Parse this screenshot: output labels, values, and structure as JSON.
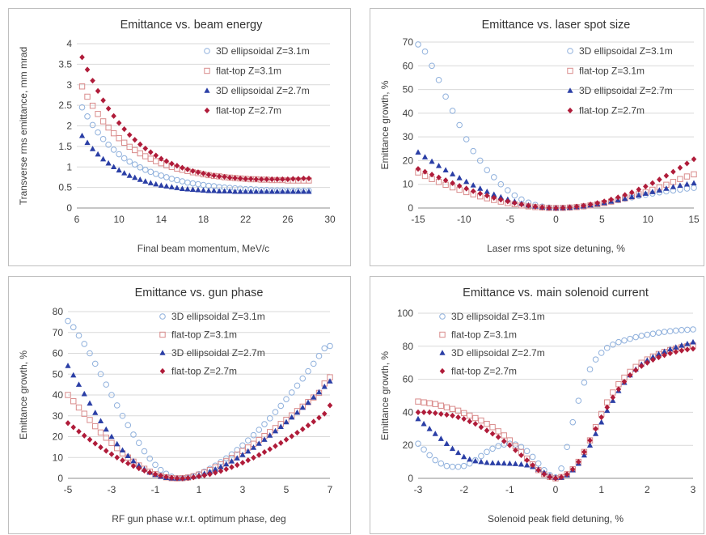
{
  "colors": {
    "ellipsoidal_31": "#8fb0dc",
    "flattop_31": "#d98b8b",
    "ellipsoidal_27": "#2b3fa6",
    "flattop_27": "#b01c3a",
    "grid": "#d9d9d9",
    "axis": "#8c8c8c"
  },
  "legend_labels": [
    "3D ellipsoidal Z=3.1m",
    "flat-top Z=3.1m",
    "3D ellipsoidal Z=2.7m",
    "flat-top Z=2.7m"
  ],
  "chart_data": [
    {
      "type": "scatter",
      "title": "Emittance vs. beam energy",
      "xlabel": "Final beam momentum, MeV/c",
      "ylabel": "Transverse rms emittance, mm mrad",
      "xlim": [
        6,
        30
      ],
      "ylim": [
        0,
        4
      ],
      "xticks": [
        6,
        10,
        14,
        18,
        22,
        26,
        30
      ],
      "yticks": [
        0,
        0.5,
        1,
        1.5,
        2,
        2.5,
        3,
        3.5,
        4
      ],
      "legend_position": "top-right",
      "x": [
        6.5,
        7,
        7.5,
        8,
        8.5,
        9,
        9.5,
        10,
        10.5,
        11,
        11.5,
        12,
        12.5,
        13,
        13.5,
        14,
        14.5,
        15,
        15.5,
        16,
        16.5,
        17,
        17.5,
        18,
        18.5,
        19,
        19.5,
        20,
        20.5,
        21,
        21.5,
        22,
        22.5,
        23,
        23.5,
        24,
        24.5,
        25,
        25.5,
        26,
        26.5,
        27,
        27.5,
        28
      ],
      "series": [
        {
          "name": "3D ellipsoidal Z=3.1m",
          "marker": "circle",
          "values": [
            2.45,
            2.23,
            2.02,
            1.84,
            1.68,
            1.54,
            1.42,
            1.31,
            1.21,
            1.13,
            1.06,
            0.99,
            0.93,
            0.88,
            0.83,
            0.79,
            0.75,
            0.71,
            0.68,
            0.65,
            0.62,
            0.6,
            0.58,
            0.56,
            0.54,
            0.53,
            0.51,
            0.5,
            0.49,
            0.48,
            0.47,
            0.46,
            0.46,
            0.45,
            0.44,
            0.44,
            0.43,
            0.43,
            0.43,
            0.42,
            0.42,
            0.42,
            0.42,
            0.42
          ]
        },
        {
          "name": "flat-top Z=3.1m",
          "marker": "square",
          "values": [
            2.96,
            2.71,
            2.49,
            2.29,
            2.11,
            1.96,
            1.82,
            1.7,
            1.59,
            1.49,
            1.41,
            1.33,
            1.26,
            1.2,
            1.14,
            1.09,
            1.04,
            1.0,
            0.96,
            0.93,
            0.9,
            0.87,
            0.85,
            0.82,
            0.8,
            0.78,
            0.77,
            0.75,
            0.74,
            0.73,
            0.72,
            0.71,
            0.7,
            0.7,
            0.69,
            0.69,
            0.68,
            0.68,
            0.68,
            0.67,
            0.67,
            0.67,
            0.67,
            0.67
          ]
        },
        {
          "name": "3D ellipsoidal Z=2.7m",
          "marker": "triangle",
          "values": [
            1.76,
            1.59,
            1.44,
            1.31,
            1.19,
            1.09,
            1.0,
            0.92,
            0.85,
            0.79,
            0.74,
            0.69,
            0.65,
            0.61,
            0.58,
            0.55,
            0.53,
            0.51,
            0.49,
            0.47,
            0.46,
            0.45,
            0.44,
            0.43,
            0.42,
            0.42,
            0.41,
            0.41,
            0.41,
            0.4,
            0.4,
            0.4,
            0.4,
            0.4,
            0.4,
            0.4,
            0.4,
            0.4,
            0.4,
            0.4,
            0.4,
            0.4,
            0.4,
            0.4
          ]
        },
        {
          "name": "flat-top Z=2.7m",
          "marker": "diamond",
          "values": [
            3.67,
            3.37,
            3.1,
            2.85,
            2.62,
            2.42,
            2.24,
            2.07,
            1.92,
            1.78,
            1.66,
            1.55,
            1.45,
            1.36,
            1.28,
            1.2,
            1.14,
            1.08,
            1.03,
            0.98,
            0.94,
            0.9,
            0.87,
            0.84,
            0.81,
            0.79,
            0.77,
            0.76,
            0.74,
            0.73,
            0.72,
            0.71,
            0.71,
            0.7,
            0.7,
            0.7,
            0.7,
            0.7,
            0.7,
            0.7,
            0.71,
            0.71,
            0.72,
            0.72
          ]
        }
      ]
    },
    {
      "type": "scatter",
      "title": "Emittance vs. laser spot size",
      "xlabel": "Laser rms spot size detuning, %",
      "ylabel": "Emittance growth, %",
      "xlim": [
        -15,
        15
      ],
      "ylim": [
        0,
        70
      ],
      "xticks": [
        -15,
        -10,
        -5,
        0,
        5,
        10,
        15
      ],
      "yticks": [
        0,
        10,
        20,
        30,
        40,
        50,
        60,
        70
      ],
      "legend_position": "top-right",
      "x": [
        -15,
        -14.25,
        -13.5,
        -12.75,
        -12,
        -11.25,
        -10.5,
        -9.75,
        -9,
        -8.25,
        -7.5,
        -6.75,
        -6,
        -5.25,
        -4.5,
        -3.75,
        -3,
        -2.25,
        -1.5,
        -0.75,
        0,
        0.75,
        1.5,
        2.25,
        3,
        3.75,
        4.5,
        5.25,
        6,
        6.75,
        7.5,
        8.25,
        9,
        9.75,
        10.5,
        11.25,
        12,
        12.75,
        13.5,
        14.25,
        15
      ],
      "series": [
        {
          "name": "3D ellipsoidal Z=3.1m",
          "marker": "circle",
          "values": [
            69,
            66,
            60,
            54,
            47,
            41,
            35,
            29,
            24,
            20,
            16,
            13,
            10,
            7.5,
            5.3,
            3.6,
            2.3,
            1.3,
            0.6,
            0.2,
            0,
            0.05,
            0.2,
            0.4,
            0.7,
            1.1,
            1.6,
            2.1,
            2.7,
            3.3,
            3.9,
            4.5,
            5.1,
            5.6,
            6.1,
            6.6,
            7.0,
            7.4,
            7.8,
            8.2,
            8.5
          ]
        },
        {
          "name": "flat-top Z=3.1m",
          "marker": "square",
          "values": [
            15,
            13.5,
            12.2,
            11,
            9.8,
            8.7,
            7.7,
            6.7,
            5.8,
            4.9,
            4.1,
            3.4,
            2.7,
            2.1,
            1.6,
            1.1,
            0.7,
            0.4,
            0.2,
            0.05,
            0,
            0.05,
            0.2,
            0.4,
            0.7,
            1.1,
            1.6,
            2.1,
            2.7,
            3.4,
            4.1,
            4.9,
            5.8,
            6.7,
            7.7,
            8.7,
            9.8,
            11,
            12.2,
            13.3,
            14.2
          ]
        },
        {
          "name": "3D ellipsoidal Z=2.7m",
          "marker": "triangle",
          "values": [
            23.5,
            21.5,
            19.6,
            17.8,
            16,
            14.3,
            12.7,
            11.1,
            9.6,
            8.2,
            6.9,
            5.7,
            4.6,
            3.6,
            2.7,
            1.9,
            1.2,
            0.7,
            0.3,
            0.1,
            0,
            0.05,
            0.2,
            0.5,
            0.8,
            1.2,
            1.7,
            2.2,
            2.8,
            3.4,
            4.0,
            4.7,
            5.4,
            6.1,
            6.8,
            7.5,
            8.2,
            8.9,
            9.5,
            10.0,
            10.5
          ]
        },
        {
          "name": "flat-top Z=2.7m",
          "marker": "diamond",
          "values": [
            16.5,
            15.3,
            14.1,
            12.9,
            11.7,
            10.5,
            9.3,
            8.2,
            7.1,
            6.1,
            5.2,
            4.3,
            3.5,
            2.8,
            2.1,
            1.5,
            1.0,
            0.6,
            0.3,
            0.1,
            0,
            0.1,
            0.3,
            0.6,
            1.0,
            1.5,
            2.1,
            2.8,
            3.6,
            4.5,
            5.5,
            6.6,
            7.8,
            9.1,
            10.5,
            12.0,
            13.6,
            15.3,
            17.0,
            18.8,
            20.6
          ]
        }
      ]
    },
    {
      "type": "scatter",
      "title": "Emittance vs. gun phase",
      "xlabel": "RF gun phase w.r.t. optimum phase, deg",
      "ylabel": "Emittance growth, %",
      "xlim": [
        -5,
        7
      ],
      "ylim": [
        0,
        80
      ],
      "xticks": [
        -5,
        -3,
        -1,
        1,
        3,
        5,
        7
      ],
      "yticks": [
        0,
        10,
        20,
        30,
        40,
        50,
        60,
        70,
        80
      ],
      "legend_position": "top-right",
      "x": [
        -5,
        -4.75,
        -4.5,
        -4.25,
        -4,
        -3.75,
        -3.5,
        -3.25,
        -3,
        -2.75,
        -2.5,
        -2.25,
        -2,
        -1.75,
        -1.5,
        -1.25,
        -1,
        -0.75,
        -0.5,
        -0.25,
        0,
        0.25,
        0.5,
        0.75,
        1,
        1.25,
        1.5,
        1.75,
        2,
        2.25,
        2.5,
        2.75,
        3,
        3.25,
        3.5,
        3.75,
        4,
        4.25,
        4.5,
        4.75,
        5,
        5.25,
        5.5,
        5.75,
        6,
        6.25,
        6.5,
        6.75,
        7
      ],
      "series": [
        {
          "name": "3D ellipsoidal Z=3.1m",
          "marker": "circle",
          "values": [
            75.5,
            72.5,
            68.5,
            64.5,
            60,
            55,
            50,
            45,
            40,
            35,
            30,
            25.5,
            21,
            17,
            13,
            9.5,
            6.5,
            4,
            2.2,
            0.8,
            0.1,
            0,
            0.3,
            1,
            2,
            3.2,
            4.6,
            6.1,
            7.8,
            9.6,
            11.5,
            13.6,
            15.8,
            18.2,
            20.7,
            23.3,
            26,
            28.8,
            31.8,
            34.8,
            38,
            41.2,
            44.5,
            47.9,
            51.4,
            55,
            58.7,
            62.4,
            63.5
          ]
        },
        {
          "name": "flat-top Z=3.1m",
          "marker": "square",
          "values": [
            40,
            37,
            34,
            31,
            28,
            25,
            22,
            19.5,
            17,
            14.5,
            12,
            10,
            8,
            6.2,
            4.6,
            3.2,
            2,
            1.1,
            0.5,
            0.1,
            0,
            0.1,
            0.4,
            1,
            1.8,
            2.8,
            4,
            5.3,
            6.7,
            8.2,
            9.8,
            11.4,
            13.1,
            14.8,
            16.6,
            18.4,
            20.3,
            22.2,
            24.1,
            26.1,
            28.1,
            30.2,
            32.3,
            34.4,
            36.6,
            38.8,
            41,
            45.5,
            48.5
          ]
        },
        {
          "name": "3D ellipsoidal Z=2.7m",
          "marker": "triangle",
          "values": [
            54,
            49.5,
            45,
            40.5,
            36,
            31.5,
            27.5,
            23.5,
            20,
            16.5,
            13.5,
            10.8,
            8.3,
            6.2,
            4.4,
            2.9,
            1.7,
            0.9,
            0.3,
            0.05,
            0,
            0.1,
            0.4,
            0.9,
            1.5,
            2.3,
            3.2,
            4.3,
            5.5,
            6.8,
            8.2,
            9.7,
            11.3,
            13,
            14.8,
            16.7,
            18.6,
            20.6,
            22.7,
            24.8,
            27,
            29.3,
            31.6,
            34,
            36.4,
            38.9,
            41.4,
            44,
            46.6
          ]
        },
        {
          "name": "flat-top Z=2.7m",
          "marker": "diamond",
          "values": [
            26.5,
            24.5,
            22.5,
            20.5,
            18.6,
            16.7,
            14.9,
            13.2,
            11.6,
            10,
            8.6,
            7.2,
            5.9,
            4.8,
            3.7,
            2.8,
            2,
            1.3,
            0.7,
            0.3,
            0.05,
            0,
            0.2,
            0.5,
            0.9,
            1.4,
            2,
            2.7,
            3.5,
            4.4,
            5.4,
            6.4,
            7.5,
            8.7,
            9.9,
            11.2,
            12.6,
            14,
            15.5,
            17,
            18.6,
            20.2,
            21.9,
            23.6,
            25.4,
            27.2,
            29.1,
            31,
            35
          ]
        }
      ]
    },
    {
      "type": "scatter",
      "title": "Emittance vs. main solenoid current",
      "xlabel": "Solenoid peak field detuning, %",
      "ylabel": "Emittance growth, %",
      "xlim": [
        -3,
        3
      ],
      "ylim": [
        0,
        100
      ],
      "xticks": [
        -3,
        -2,
        -1,
        0,
        1,
        2,
        3
      ],
      "yticks": [
        0,
        20,
        40,
        60,
        80,
        100
      ],
      "legend_position": "top-left",
      "x": [
        -3,
        -2.875,
        -2.75,
        -2.625,
        -2.5,
        -2.375,
        -2.25,
        -2.125,
        -2,
        -1.875,
        -1.75,
        -1.625,
        -1.5,
        -1.375,
        -1.25,
        -1.125,
        -1,
        -0.875,
        -0.75,
        -0.625,
        -0.5,
        -0.375,
        -0.25,
        -0.125,
        0,
        0.125,
        0.25,
        0.375,
        0.5,
        0.625,
        0.75,
        0.875,
        1,
        1.125,
        1.25,
        1.375,
        1.5,
        1.625,
        1.75,
        1.875,
        2,
        2.125,
        2.25,
        2.375,
        2.5,
        2.625,
        2.75,
        2.875,
        3
      ],
      "series": [
        {
          "name": "3D ellipsoidal Z=3.1m",
          "marker": "circle",
          "values": [
            21,
            17.5,
            14,
            11,
            9,
            7.5,
            7,
            7,
            7.5,
            9,
            11,
            13.5,
            16,
            18,
            19.5,
            20.5,
            21,
            20.5,
            19,
            16.5,
            13,
            9,
            5,
            2,
            0.5,
            6,
            19,
            34,
            47,
            58,
            66,
            72,
            76,
            79,
            81,
            82.5,
            83.5,
            84.5,
            85.5,
            86.3,
            87,
            87.6,
            88.2,
            88.7,
            89.1,
            89.5,
            89.8,
            90,
            90.2
          ]
        },
        {
          "name": "flat-top Z=3.1m",
          "marker": "square",
          "values": [
            46.5,
            46,
            45.5,
            45,
            44,
            43,
            42,
            41,
            39.5,
            38,
            36.5,
            35,
            33,
            31,
            28.5,
            26,
            23,
            19.5,
            16,
            12,
            8.5,
            5,
            2.5,
            0.8,
            0,
            0.8,
            2.5,
            5.5,
            10,
            16,
            23,
            31,
            39,
            46,
            52,
            57,
            61,
            64.5,
            67.5,
            70,
            72,
            73.8,
            75.3,
            76.6,
            77.7,
            78.6,
            79.4,
            80,
            80.5
          ]
        },
        {
          "name": "3D ellipsoidal Z=2.7m",
          "marker": "triangle",
          "values": [
            36,
            33,
            30,
            27,
            24,
            21,
            18,
            15.5,
            13,
            11.5,
            10.5,
            10,
            9.5,
            9.3,
            9.2,
            9.1,
            9,
            8.8,
            8.5,
            8,
            7,
            5.5,
            3.5,
            1.5,
            0.5,
            0.5,
            2,
            5,
            9,
            14,
            20,
            27,
            34,
            41,
            47,
            53,
            58,
            62.5,
            66,
            69,
            71.5,
            73.5,
            75.3,
            76.8,
            78.2,
            79.4,
            80.5,
            81.5,
            82.5
          ]
        },
        {
          "name": "flat-top Z=2.7m",
          "marker": "diamond",
          "values": [
            40,
            40,
            40,
            39.5,
            39,
            38.5,
            38,
            37,
            36,
            34.5,
            33,
            31,
            29,
            27,
            25,
            22.5,
            20,
            17,
            14,
            11,
            8,
            5,
            2.5,
            0.8,
            0,
            0.8,
            2.5,
            5.5,
            10,
            16,
            23,
            30,
            37,
            43,
            49,
            54,
            58.5,
            62.5,
            65.5,
            68,
            70,
            71.8,
            73.3,
            74.6,
            75.7,
            76.6,
            77.4,
            78,
            78.5
          ]
        }
      ]
    }
  ]
}
